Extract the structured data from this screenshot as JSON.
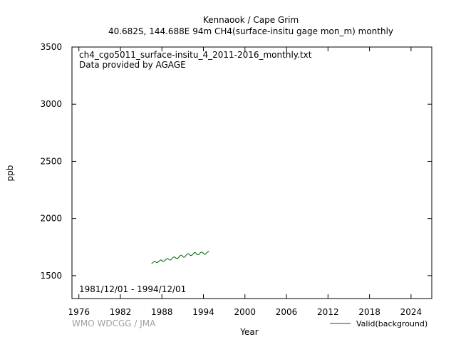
{
  "chart_data": {
    "type": "line",
    "title": "Kennaook / Cape Grim",
    "subtitle": "40.682S, 144.688E 94m    CH4(surface-insitu gage mon_m) monthly",
    "xlabel": "Year",
    "ylabel": "ppb",
    "xlim": [
      1975,
      2027
    ],
    "ylim": [
      1300,
      3500
    ],
    "x_ticks": [
      "1976",
      "1982",
      "1988",
      "1994",
      "2000",
      "2006",
      "2012",
      "2018",
      "2024"
    ],
    "x_tick_values": [
      1976,
      1982,
      1988,
      1994,
      2000,
      2006,
      2012,
      2018,
      2024
    ],
    "y_ticks": [
      "1500",
      "2000",
      "2500",
      "3000",
      "3500"
    ],
    "y_tick_values": [
      1500,
      2000,
      2500,
      3000,
      3500
    ],
    "annotations": [
      "ch4_cgo5011_surface-insitu_4_2011-2016_monthly.txt",
      "Data provided by AGAGE"
    ],
    "period_label": "1981/12/01 - 1994/12/01",
    "credit": "WMO WDCGG / JMA",
    "grid": false,
    "legend_position": "bottom-right",
    "series": [
      {
        "name": "Valid(background)",
        "color": "#006400",
        "x": [
          1986.5,
          1986.67,
          1986.83,
          1987.0,
          1987.17,
          1987.33,
          1987.5,
          1987.67,
          1987.83,
          1988.0,
          1988.17,
          1988.33,
          1988.5,
          1988.67,
          1988.83,
          1989.0,
          1989.17,
          1989.33,
          1989.5,
          1989.67,
          1989.83,
          1990.0,
          1990.17,
          1990.33,
          1990.5,
          1990.67,
          1990.83,
          1991.0,
          1991.17,
          1991.33,
          1991.5,
          1991.67,
          1991.83,
          1992.0,
          1992.17,
          1992.33,
          1992.5,
          1992.67,
          1992.83,
          1993.0,
          1993.17,
          1993.33,
          1993.5,
          1993.67,
          1993.83,
          1994.0,
          1994.17,
          1994.33,
          1994.5,
          1994.67,
          1994.83
        ],
        "values": [
          1608,
          1612,
          1622,
          1626,
          1616,
          1614,
          1622,
          1630,
          1638,
          1633,
          1624,
          1627,
          1637,
          1646,
          1650,
          1642,
          1636,
          1640,
          1652,
          1662,
          1664,
          1655,
          1649,
          1654,
          1666,
          1677,
          1680,
          1669,
          1660,
          1666,
          1679,
          1690,
          1693,
          1683,
          1676,
          1678,
          1690,
          1701,
          1702,
          1691,
          1682,
          1685,
          1697,
          1705,
          1706,
          1695,
          1686,
          1690,
          1702,
          1710,
          1708
        ]
      }
    ]
  }
}
